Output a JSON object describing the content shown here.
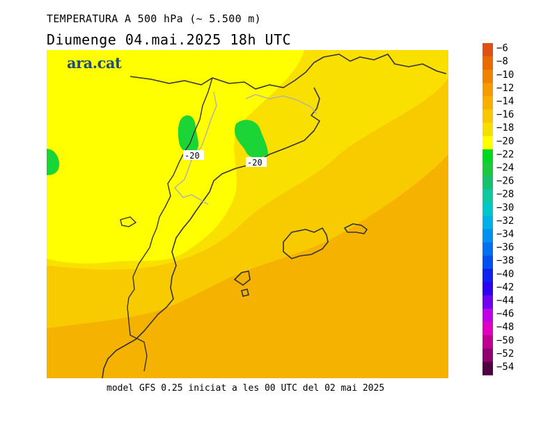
{
  "header": {
    "title": "TEMPERATURA A 500 hPa (~ 5.500 m)",
    "subtitle": "Diumenge  04.mai.2025 18h UTC"
  },
  "brand": {
    "logo_text": "ara.cat"
  },
  "map": {
    "contour_labels": [
      "-20",
      "-20"
    ]
  },
  "footer": {
    "model_text": "model GFS 0.25 iniciat a les 00 UTC del 02 mai 2025"
  },
  "legend": {
    "levels": [
      "-6",
      "-8",
      "-10",
      "-12",
      "-14",
      "-16",
      "-18",
      "-20",
      "-22",
      "-24",
      "-26",
      "-28",
      "-30",
      "-32",
      "-34",
      "-36",
      "-38",
      "-40",
      "-42",
      "-44",
      "-46",
      "-48",
      "-50",
      "-52",
      "-54"
    ],
    "colors": [
      "#e05010",
      "#e86a00",
      "#f08200",
      "#f59a00",
      "#f8b000",
      "#f7c800",
      "#f5de00",
      "#ffff00",
      "#00d820",
      "#1cc840",
      "#18c070",
      "#10c8a0",
      "#00c8c8",
      "#00b0e8",
      "#0090f0",
      "#0070f0",
      "#0050f0",
      "#1020f0",
      "#3000f0",
      "#7000f0",
      "#c000e8",
      "#e000c0",
      "#c00090",
      "#900070",
      "#500040"
    ]
  },
  "colors": {
    "field_yellow": "#ffff00",
    "field_yellow_orange": "#f9e000",
    "field_orange_light": "#f8cb00",
    "field_orange": "#f6b200",
    "field_green": "#1bd536",
    "coastline": "#333333",
    "border": "#b0b0b0"
  }
}
